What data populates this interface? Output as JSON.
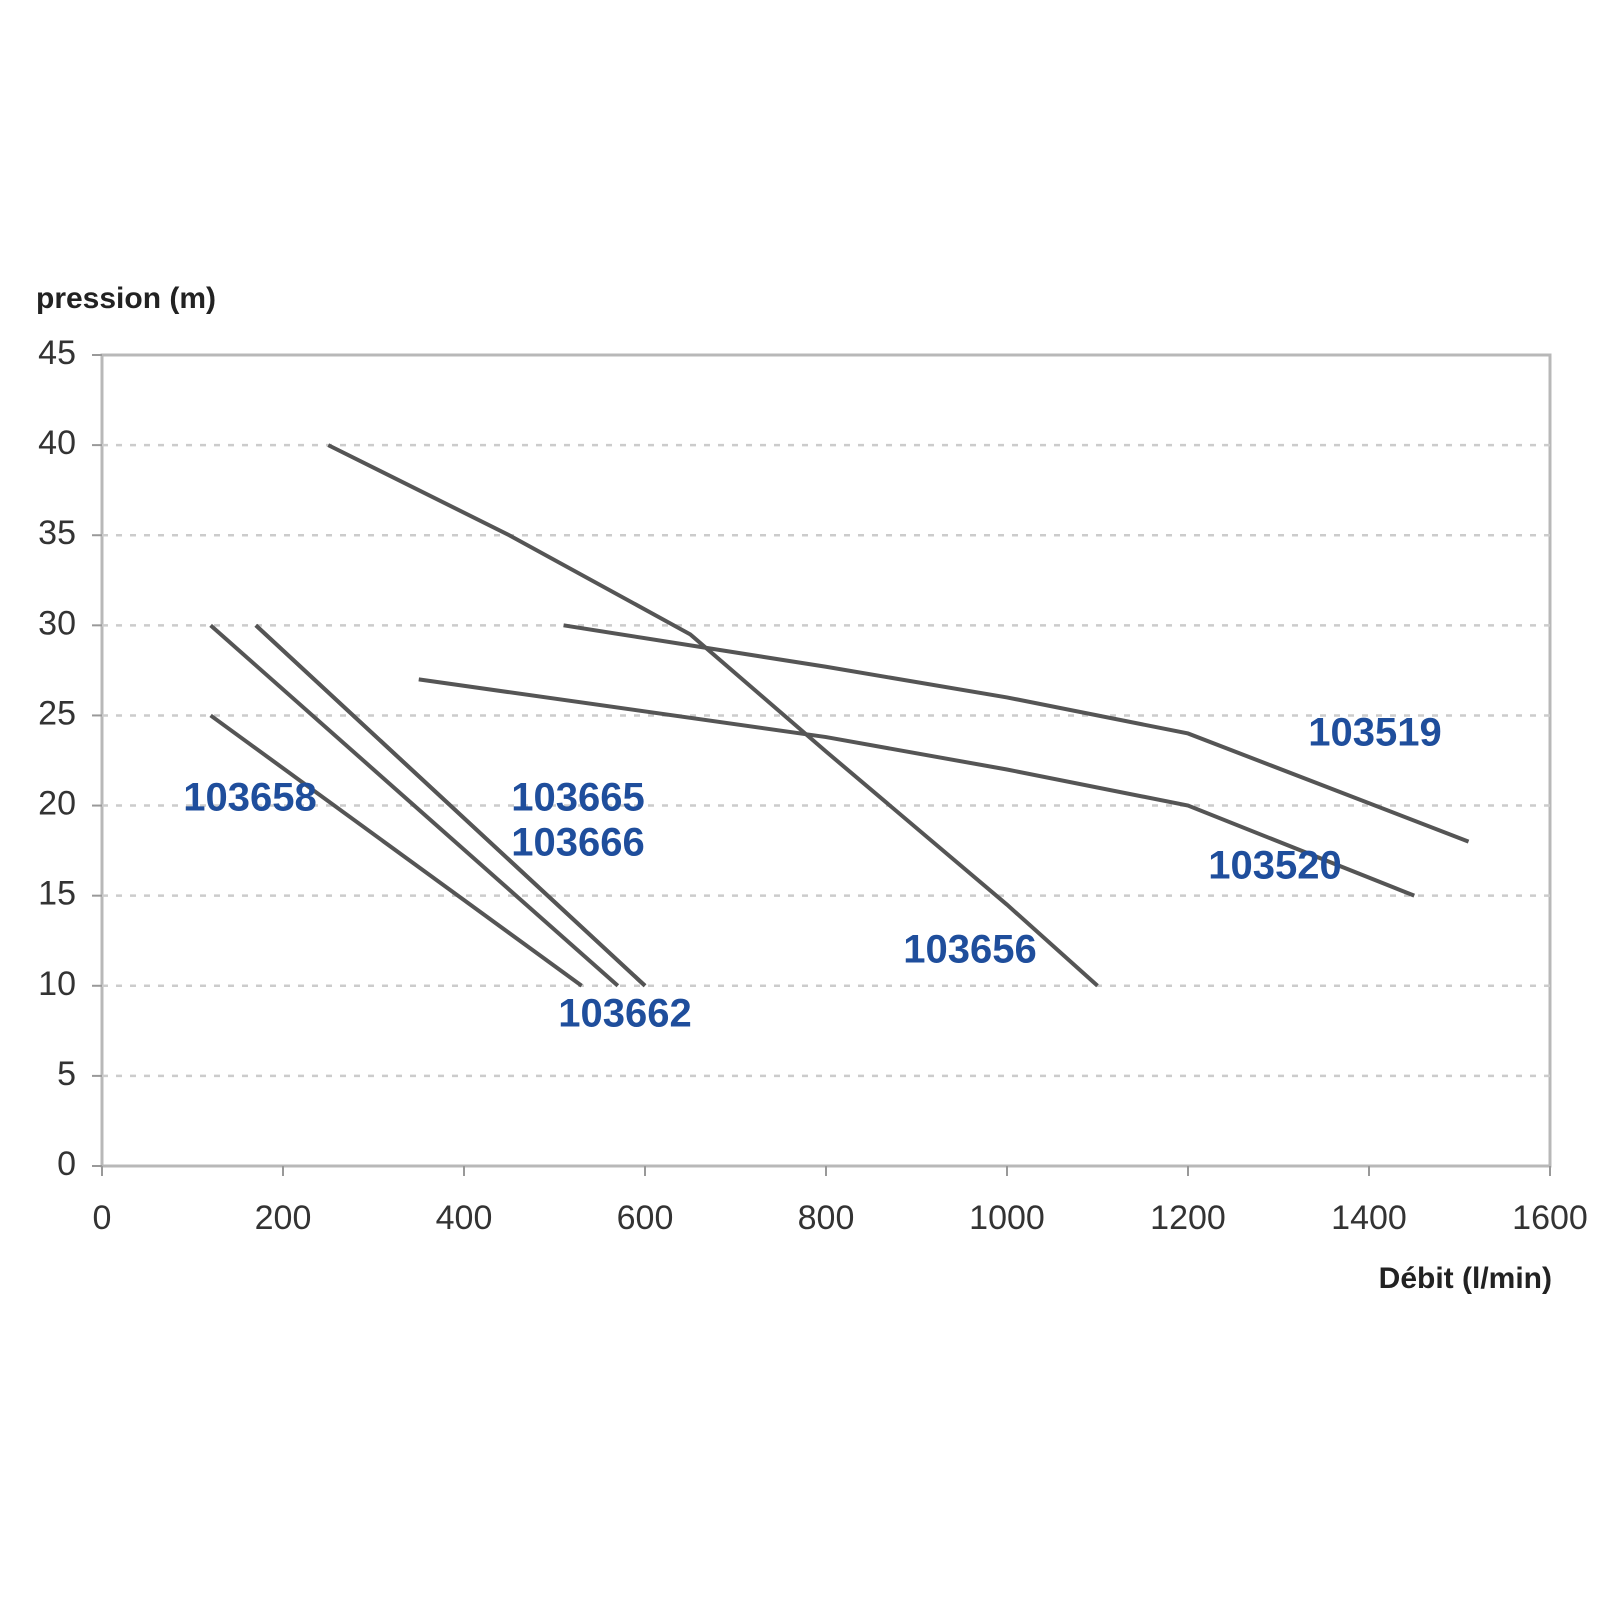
{
  "chart_data": {
    "type": "line",
    "ylabel": "pression (m)",
    "xlabel": "Débit (l/min)",
    "xlim": [
      0,
      1600
    ],
    "xticks": [
      0,
      200,
      400,
      600,
      800,
      1000,
      1200,
      1400,
      1600
    ],
    "ylim": [
      0,
      45
    ],
    "yticks": [
      0,
      5,
      10,
      15,
      20,
      25,
      30,
      35,
      40,
      45
    ],
    "grid": true,
    "label_color": "#1f4e9c",
    "series": [
      {
        "name": "103519",
        "color": "#555555",
        "x": [
          510,
          800,
          1000,
          1200,
          1510
        ],
        "values": [
          30,
          27.7,
          26,
          24,
          18
        ]
      },
      {
        "name": "103520",
        "color": "#555555",
        "x": [
          350,
          800,
          1000,
          1200,
          1450
        ],
        "values": [
          27,
          23.8,
          22,
          20,
          15
        ]
      },
      {
        "name": "103656",
        "color": "#555555",
        "x": [
          250,
          450,
          650,
          800,
          1000,
          1100
        ],
        "values": [
          40,
          35,
          29.5,
          23,
          14.5,
          10
        ]
      },
      {
        "name": "103665",
        "color": "#555555",
        "x": [
          170,
          600
        ],
        "values": [
          30,
          10
        ]
      },
      {
        "name": "103666",
        "color": "#555555",
        "x": [
          170,
          600
        ],
        "values": [
          30,
          10
        ]
      },
      {
        "name": "103658",
        "color": "#555555",
        "x": [
          120,
          530
        ],
        "values": [
          25,
          10
        ]
      },
      {
        "name": "103662",
        "color": "#555555",
        "x": [
          120,
          570
        ],
        "values": [
          30,
          10
        ]
      }
    ]
  }
}
